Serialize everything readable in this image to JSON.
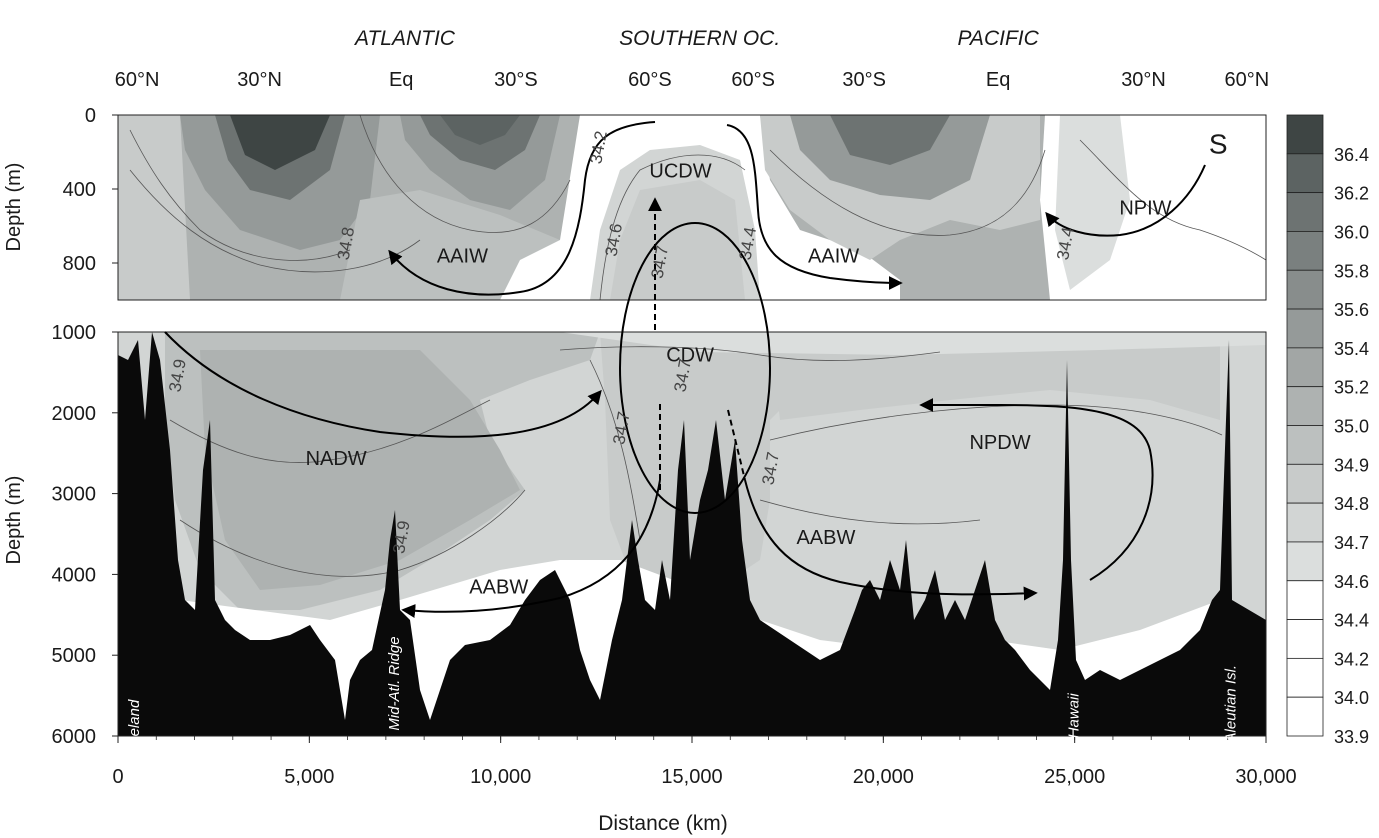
{
  "chart_data": {
    "type": "heatmap",
    "xlabel": "Distance (km)",
    "ylabel": "Depth (m)",
    "x_ticks": [
      0,
      5000,
      10000,
      15000,
      20000,
      25000,
      30000
    ],
    "x_tick_labels": [
      "0",
      "5,000",
      "10,000",
      "15,000",
      "20,000",
      "25,000",
      "30,000"
    ],
    "upper_panel": {
      "ylim": [
        0,
        1000
      ],
      "y_ticks": [
        0,
        400,
        800
      ],
      "y_tick_labels": [
        "0",
        "400",
        "800"
      ]
    },
    "lower_panel": {
      "ylim": [
        1000,
        6000
      ],
      "y_ticks": [
        1000,
        2000,
        3000,
        4000,
        5000,
        6000
      ],
      "y_tick_labels": [
        "1000",
        "2000",
        "3000",
        "4000",
        "5000",
        "6000"
      ]
    },
    "ocean_labels": [
      {
        "text": "ATLANTIC",
        "x": 7500
      },
      {
        "text": "SOUTHERN OC.",
        "x": 15200
      },
      {
        "text": "PACIFIC",
        "x": 23000
      }
    ],
    "latitude_labels": [
      {
        "text": "60°N",
        "x": 500
      },
      {
        "text": "30°N",
        "x": 3700
      },
      {
        "text": "Eq",
        "x": 7400
      },
      {
        "text": "30°S",
        "x": 10400
      },
      {
        "text": "60°S",
        "x": 13900
      },
      {
        "text": "60°S",
        "x": 16600
      },
      {
        "text": "30°S",
        "x": 19500
      },
      {
        "text": "Eq",
        "x": 23000
      },
      {
        "text": "30°N",
        "x": 26800
      },
      {
        "text": "60°N",
        "x": 29500
      }
    ],
    "colorbar": {
      "values": [
        "36.4",
        "36.2",
        "36.0",
        "35.8",
        "35.6",
        "35.4",
        "35.2",
        "35.0",
        "34.9",
        "34.8",
        "34.7",
        "34.6",
        "34.4",
        "34.2",
        "34.0",
        "33.9"
      ],
      "colors": [
        "#3e4544",
        "#5c6362",
        "#6d7372",
        "#7a807f",
        "#888d8c",
        "#959a99",
        "#a2a6a5",
        "#aeb2b1",
        "#bcc0bf",
        "#c8cbca",
        "#d2d5d4",
        "#dbdedd",
        "#ffffff",
        "#ffffff",
        "#ffffff",
        "#ffffff"
      ]
    },
    "water_masses": [
      {
        "text": "UCDW",
        "x": 14700,
        "depth": 300
      },
      {
        "text": "NPIW",
        "x": 26850,
        "depth": 500
      },
      {
        "text": "AAIW",
        "x": 9000,
        "depth": 760
      },
      {
        "text": "AAIW",
        "x": 18700,
        "depth": 760
      },
      {
        "text": "S",
        "x": 28750,
        "depth": 170
      },
      {
        "text": "CDW",
        "x": 14950,
        "depth": 1280
      },
      {
        "text": "NADW",
        "x": 5700,
        "depth": 2560
      },
      {
        "text": "NPDW",
        "x": 23050,
        "depth": 2360
      },
      {
        "text": "AABW",
        "x": 9950,
        "depth": 4150
      },
      {
        "text": "AABW",
        "x": 18500,
        "depth": 3540
      }
    ],
    "contour_labels": [
      {
        "text": "34.2",
        "x": 12700,
        "depth": 180
      },
      {
        "text": "34.8",
        "x": 6100,
        "depth": 700
      },
      {
        "text": "34.6",
        "x": 13100,
        "depth": 680
      },
      {
        "text": "34.7",
        "x": 14300,
        "depth": 800
      },
      {
        "text": "34.4",
        "x": 16600,
        "depth": 700
      },
      {
        "text": "34.4",
        "x": 24900,
        "depth": 700
      },
      {
        "text": "34.9",
        "x": 1700,
        "depth": 1550
      },
      {
        "text": "34.7",
        "x": 13300,
        "depth": 2200
      },
      {
        "text": "34.7",
        "x": 14900,
        "depth": 1550
      },
      {
        "text": "34.7",
        "x": 17200,
        "depth": 2700
      },
      {
        "text": "34.9",
        "x": 7550,
        "depth": 3550
      }
    ],
    "topography_labels": [
      {
        "text": "Iceland",
        "x": 550,
        "depth": 5850
      },
      {
        "text": "Mid-Atl. Ridge",
        "x": 7350,
        "depth": 5350
      },
      {
        "text": "Hawaii",
        "x": 25100,
        "depth": 5750
      },
      {
        "text": "Aleutian Isl.",
        "x": 29200,
        "depth": 5600
      }
    ]
  }
}
